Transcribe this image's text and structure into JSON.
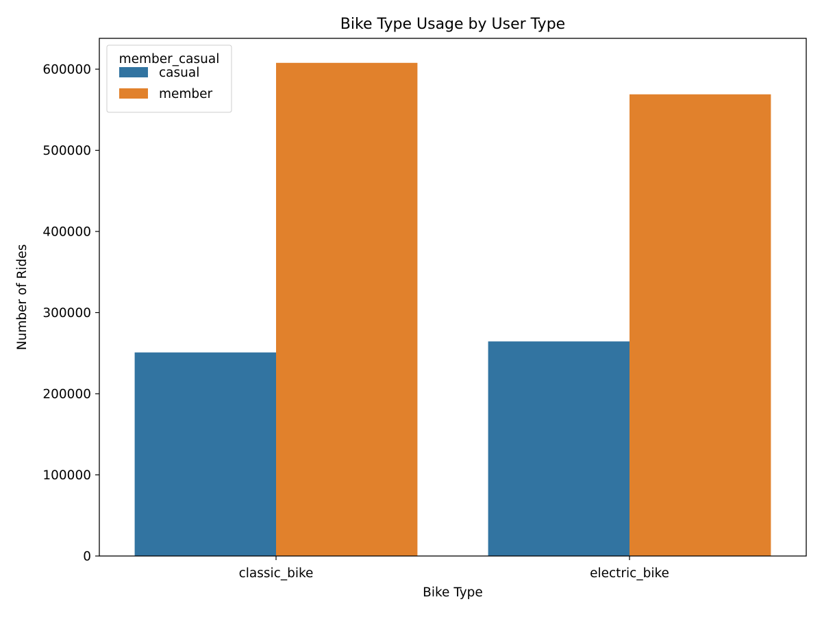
{
  "chart_data": {
    "type": "bar",
    "title": "Bike Type Usage by User Type",
    "xlabel": "Bike Type",
    "ylabel": "Number of Rides",
    "categories": [
      "classic_bike",
      "electric_bike"
    ],
    "series": [
      {
        "name": "casual",
        "values": [
          250900,
          264500
        ],
        "color": "#3274a1"
      },
      {
        "name": "member",
        "values": [
          607800,
          569000
        ],
        "color": "#e1812c"
      }
    ],
    "ylim": [
      0,
      638000
    ],
    "yticks": [
      0,
      100000,
      200000,
      300000,
      400000,
      500000,
      600000
    ],
    "ytick_labels": [
      "0",
      "100000",
      "200000",
      "300000",
      "400000",
      "500000",
      "600000"
    ],
    "legend": {
      "title": "member_casual",
      "placement": "top-left"
    },
    "grid": false
  }
}
